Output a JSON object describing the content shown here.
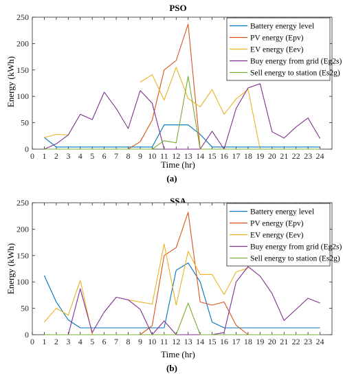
{
  "charts": [
    {
      "title": "PSO",
      "caption": "(a)",
      "xlabel": "Time (hr)",
      "ylabel": "Energy (kWh)"
    },
    {
      "title": "SSA",
      "caption": "(b)",
      "xlabel": "Time (hr)",
      "ylabel": "Energy (kWh)"
    }
  ],
  "chart_data": [
    {
      "type": "line",
      "title": "PSO",
      "xlabel": "Time (hr)",
      "ylabel": "Energy (kWh)",
      "xlim": [
        0,
        25
      ],
      "ylim": [
        0,
        250
      ],
      "x_ticks": [
        0,
        1,
        2,
        3,
        4,
        5,
        6,
        7,
        8,
        9,
        10,
        11,
        12,
        13,
        14,
        15,
        16,
        17,
        18,
        19,
        20,
        21,
        22,
        23,
        24
      ],
      "y_ticks": [
        0,
        50,
        100,
        150,
        200,
        250
      ],
      "grid": false,
      "legend_position": "top-right",
      "x": [
        1,
        2,
        3,
        4,
        5,
        6,
        7,
        8,
        9,
        10,
        11,
        12,
        13,
        14,
        15,
        16,
        17,
        18,
        19,
        20,
        21,
        22,
        23,
        24
      ],
      "series": [
        {
          "name": "Battery energy level",
          "color": "#0072BD",
          "values": [
            22,
            4,
            4,
            4,
            4,
            4,
            4,
            4,
            4,
            4,
            46,
            46,
            46,
            28,
            4,
            4,
            4,
            4,
            4,
            4,
            4,
            4,
            4,
            4
          ]
        },
        {
          "name": "PV energy (Epv)",
          "color": "#D95319",
          "values": [
            0,
            0,
            0,
            0,
            0,
            0,
            0,
            0,
            14,
            55,
            150,
            168,
            237,
            0,
            0,
            0,
            0,
            0,
            0,
            0,
            0,
            0,
            0,
            0
          ]
        },
        {
          "name": "EV energy (Eev)",
          "color": "#EDB120",
          "values": [
            22,
            28,
            27,
            null,
            null,
            null,
            null,
            null,
            127,
            141,
            93,
            155,
            96,
            80,
            113,
            66,
            95,
            113,
            0,
            0,
            0,
            0,
            0,
            0
          ]
        },
        {
          "name": "Buy energy from grid (Eg2s)",
          "color": "#7E2F8E",
          "values": [
            0,
            10,
            27,
            66,
            56,
            108,
            77,
            39,
            111,
            87,
            0,
            0,
            0,
            0,
            34,
            0,
            77,
            116,
            124,
            33,
            21,
            42,
            59,
            20
          ]
        },
        {
          "name": "Sell energy to station (Es2g)",
          "color": "#77AC30",
          "values": [
            0,
            0,
            0,
            0,
            0,
            0,
            0,
            0,
            0,
            0,
            16,
            12,
            138,
            0,
            0,
            0,
            0,
            0,
            0,
            0,
            0,
            0,
            0,
            0
          ]
        }
      ]
    },
    {
      "type": "line",
      "title": "SSA",
      "xlabel": "Time (hr)",
      "ylabel": "Energy (kWh)",
      "xlim": [
        0,
        25
      ],
      "ylim": [
        0,
        250
      ],
      "x_ticks": [
        0,
        1,
        2,
        3,
        4,
        5,
        6,
        7,
        8,
        9,
        10,
        11,
        12,
        13,
        14,
        15,
        16,
        17,
        18,
        19,
        20,
        21,
        22,
        23,
        24
      ],
      "y_ticks": [
        0,
        50,
        100,
        150,
        200,
        250
      ],
      "grid": false,
      "legend_position": "top-right",
      "x": [
        1,
        2,
        3,
        4,
        5,
        6,
        7,
        8,
        9,
        10,
        11,
        12,
        13,
        14,
        15,
        16,
        17,
        18,
        19,
        20,
        21,
        22,
        23,
        24
      ],
      "series": [
        {
          "name": "Battery energy level",
          "color": "#0072BD",
          "values": [
            112,
            62,
            28,
            13,
            13,
            13,
            13,
            13,
            13,
            13,
            13,
            122,
            136,
            100,
            24,
            13,
            13,
            13,
            13,
            13,
            13,
            13,
            13,
            13
          ]
        },
        {
          "name": "PV energy (Epv)",
          "color": "#D95319",
          "values": [
            0,
            0,
            0,
            0,
            0,
            0,
            0,
            0,
            0,
            17,
            150,
            165,
            232,
            62,
            56,
            62,
            18,
            0,
            0,
            0,
            0,
            0,
            0,
            0
          ]
        },
        {
          "name": "EV energy (Eev)",
          "color": "#EDB120",
          "values": [
            24,
            50,
            37,
            103,
            0,
            null,
            null,
            66,
            62,
            58,
            172,
            56,
            158,
            114,
            114,
            76,
            119,
            126,
            null,
            null,
            null,
            null,
            null,
            null
          ]
        },
        {
          "name": "Buy energy from grid (Eg2s)",
          "color": "#7E2F8E",
          "values": [
            0,
            0,
            0,
            87,
            4,
            43,
            71,
            66,
            48,
            0,
            26,
            0,
            0,
            0,
            0,
            4,
            100,
            129,
            111,
            78,
            27,
            48,
            69,
            60
          ]
        },
        {
          "name": "Sell energy to station (Es2g)",
          "color": "#77AC30",
          "values": [
            0,
            0,
            0,
            0,
            0,
            0,
            0,
            0,
            0,
            0,
            0,
            0,
            60,
            0,
            0,
            0,
            0,
            0,
            0,
            0,
            0,
            0,
            0,
            0
          ]
        }
      ]
    }
  ]
}
